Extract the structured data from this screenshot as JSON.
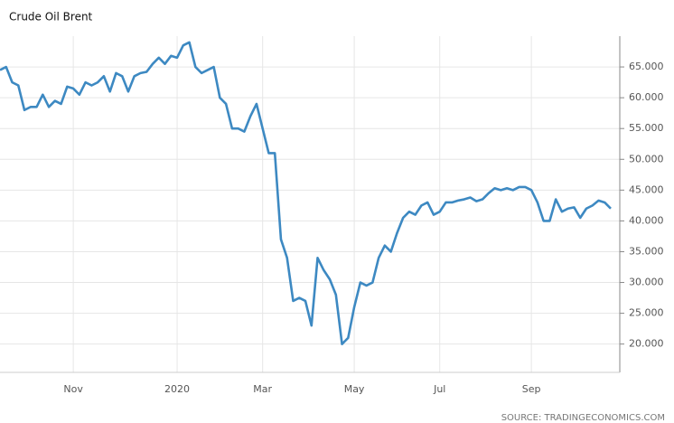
{
  "chart_data": {
    "type": "line",
    "title": "Crude Oil Brent",
    "source": "SOURCE: TRADINGECONOMICS.COM",
    "categories": [
      null,
      null,
      null,
      null,
      null,
      null,
      null,
      null,
      null,
      null,
      null,
      null,
      "Nov",
      null,
      null,
      null,
      null,
      null,
      null,
      null,
      null,
      null,
      null,
      null,
      null,
      null,
      null,
      null,
      null,
      "2020",
      null,
      null,
      null,
      null,
      null,
      null,
      null,
      null,
      null,
      null,
      null,
      null,
      null,
      "Mar",
      null,
      null,
      null,
      null,
      null,
      null,
      null,
      null,
      null,
      null,
      null,
      null,
      null,
      null,
      "May",
      null,
      null,
      null,
      null,
      null,
      null,
      null,
      null,
      null,
      null,
      null,
      null,
      null,
      "Jul",
      null,
      null,
      null,
      null,
      null,
      null,
      null,
      null,
      null,
      null,
      null,
      null,
      null,
      null,
      "Sep",
      null,
      null,
      null,
      null,
      null,
      null,
      null,
      null,
      null,
      null,
      null,
      null,
      null
    ],
    "values": [
      64.5,
      65,
      62.5,
      62,
      58,
      58.5,
      58.5,
      60.5,
      58.5,
      59.5,
      59,
      61.8,
      61.5,
      60.5,
      62.5,
      62,
      62.5,
      63.5,
      61,
      64,
      63.5,
      61,
      63.5,
      64,
      64.2,
      65.5,
      66.5,
      65.5,
      66.8,
      66.5,
      68.5,
      69,
      65,
      64,
      64.5,
      65,
      60,
      59,
      55,
      55,
      54.5,
      57,
      59,
      55,
      51,
      51,
      37,
      34,
      27,
      27.5,
      27,
      23,
      34,
      32,
      30.5,
      28,
      20,
      21,
      26,
      30,
      29.5,
      30,
      34,
      36,
      35,
      38,
      40.5,
      41.5,
      41,
      42.5,
      43,
      41,
      41.5,
      43,
      43,
      43.3,
      43.5,
      43.8,
      43.2,
      43.5,
      44.5,
      45.3,
      45,
      45.3,
      45,
      45.5,
      45.5,
      45,
      43,
      40,
      40,
      43.5,
      41.5,
      42,
      42.2,
      40.5,
      42,
      42.5,
      43.3,
      43,
      42
    ],
    "color": "#3d89c2",
    "ylim": [
      15.4,
      70
    ],
    "yticks": [
      {
        "value": 20,
        "label": "20.000"
      },
      {
        "value": 25,
        "label": "25.000"
      },
      {
        "value": 30,
        "label": "30.000"
      },
      {
        "value": 35,
        "label": "35.000"
      },
      {
        "value": 40,
        "label": "40.000"
      },
      {
        "value": 45,
        "label": "45.000"
      },
      {
        "value": 50,
        "label": "50.000"
      },
      {
        "value": 55,
        "label": "55.000"
      },
      {
        "value": 60,
        "label": "60.000"
      },
      {
        "value": 65,
        "label": "65.000"
      }
    ],
    "grid": true
  }
}
